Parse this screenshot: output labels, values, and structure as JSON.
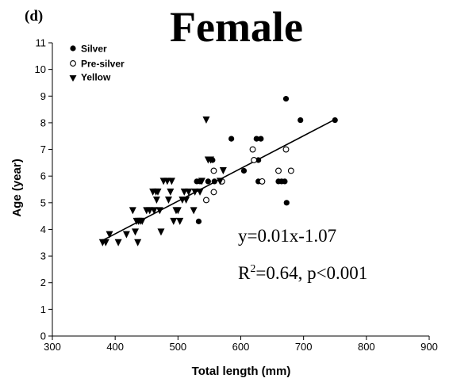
{
  "chart_data": {
    "type": "scatter",
    "panel_label": "(d)",
    "title": "Female",
    "xlabel": "Total length (mm)",
    "ylabel": "Age (year)",
    "xlim": [
      300,
      900
    ],
    "ylim": [
      0,
      11
    ],
    "xticks": [
      300,
      400,
      500,
      600,
      700,
      800,
      900
    ],
    "yticks": [
      0,
      1,
      2,
      3,
      4,
      5,
      6,
      7,
      8,
      9,
      10,
      11
    ],
    "grid": false,
    "legend_position": "top-left",
    "series": [
      {
        "name": "Silver",
        "marker": "filled-circle",
        "points": [
          [
            530,
            5.8
          ],
          [
            533,
            4.3
          ],
          [
            535,
            5.8
          ],
          [
            548,
            5.8
          ],
          [
            555,
            6.6
          ],
          [
            558,
            5.8
          ],
          [
            585,
            7.4
          ],
          [
            605,
            6.2
          ],
          [
            625,
            7.4
          ],
          [
            628,
            6.6
          ],
          [
            628,
            5.8
          ],
          [
            632,
            7.4
          ],
          [
            660,
            5.8
          ],
          [
            665,
            5.8
          ],
          [
            670,
            5.8
          ],
          [
            672,
            8.9
          ],
          [
            673,
            5.0
          ],
          [
            695,
            8.1
          ],
          [
            750,
            8.1
          ]
        ]
      },
      {
        "name": "Pre-silver",
        "marker": "open-circle",
        "points": [
          [
            545,
            5.1
          ],
          [
            557,
            6.2
          ],
          [
            557,
            5.4
          ],
          [
            570,
            5.8
          ],
          [
            619,
            7.0
          ],
          [
            621,
            6.6
          ],
          [
            634,
            5.8
          ],
          [
            660,
            6.2
          ],
          [
            672,
            7.0
          ],
          [
            680,
            6.2
          ]
        ]
      },
      {
        "name": "Yellow",
        "marker": "filled-triangle-down",
        "points": [
          [
            380,
            3.5
          ],
          [
            385,
            3.5
          ],
          [
            391,
            3.8
          ],
          [
            405,
            3.5
          ],
          [
            418,
            3.8
          ],
          [
            428,
            4.7
          ],
          [
            432,
            3.9
          ],
          [
            434,
            4.3
          ],
          [
            436,
            3.5
          ],
          [
            437,
            4.3
          ],
          [
            440,
            4.3
          ],
          [
            443,
            4.3
          ],
          [
            450,
            4.7
          ],
          [
            455,
            4.7
          ],
          [
            460,
            5.4
          ],
          [
            462,
            4.7
          ],
          [
            465,
            5.4
          ],
          [
            466,
            5.1
          ],
          [
            468,
            5.4
          ],
          [
            471,
            4.7
          ],
          [
            473,
            3.9
          ],
          [
            477,
            5.8
          ],
          [
            483,
            5.8
          ],
          [
            485,
            5.1
          ],
          [
            488,
            5.4
          ],
          [
            490,
            5.8
          ],
          [
            493,
            4.3
          ],
          [
            497,
            4.7
          ],
          [
            500,
            4.7
          ],
          [
            503,
            4.3
          ],
          [
            507,
            5.1
          ],
          [
            510,
            5.4
          ],
          [
            513,
            5.1
          ],
          [
            517,
            5.4
          ],
          [
            525,
            4.7
          ],
          [
            527,
            5.4
          ],
          [
            535,
            5.4
          ],
          [
            538,
            5.8
          ],
          [
            545,
            8.1
          ],
          [
            548,
            6.6
          ],
          [
            552,
            6.6
          ],
          [
            567,
            5.8
          ],
          [
            572,
            6.2
          ]
        ]
      }
    ],
    "regression": {
      "slope": 0.01226,
      "intercept": -1.07,
      "x_range": [
        380,
        750
      ]
    },
    "annotations": {
      "equation": "y=0.01x-1.07",
      "r_prefix": "R",
      "r_sup": "2",
      "r_rest": "=0.64, p<0.001"
    }
  }
}
